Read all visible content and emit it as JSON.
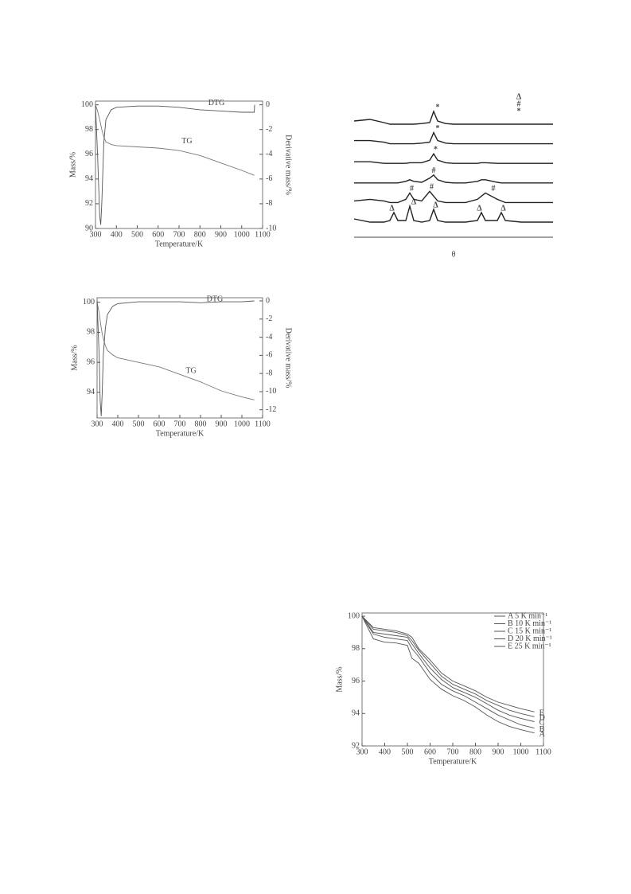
{
  "chart_data": [
    {
      "type": "line",
      "xlabel": "Temperature/K",
      "ylabel": "Mass/%",
      "y2label": "Derivative mass/%",
      "xlim": [
        300,
        1100
      ],
      "xticks": [
        300,
        400,
        500,
        600,
        700,
        800,
        900,
        1000,
        1100
      ],
      "ylim": [
        90,
        100.3
      ],
      "yticks": [
        90,
        92,
        94,
        96,
        98,
        100
      ],
      "y2lim": [
        -10,
        0.3
      ],
      "y2ticks": [
        0,
        -2,
        -4,
        -6,
        -8,
        -10
      ],
      "x": [
        300,
        310,
        320,
        325,
        330,
        340,
        350,
        375,
        400,
        500,
        600,
        700,
        800,
        900,
        1000,
        1060,
        1062
      ],
      "series": [
        {
          "color": "#777",
          "values": [
            100,
            99.5,
            98.8,
            98.4,
            98.0,
            97.4,
            97.0,
            96.8,
            96.7,
            96.6,
            96.5,
            96.3,
            95.9,
            95.3,
            94.7,
            94.3,
            null
          ]
        },
        {
          "color": "#555",
          "axis": "y2",
          "values": [
            0,
            -4,
            -9,
            -9.7,
            -8,
            -3,
            -1.2,
            -0.4,
            -0.2,
            -0.1,
            -0.1,
            -0.2,
            -0.4,
            -0.5,
            -0.6,
            -0.6,
            0
          ]
        }
      ],
      "annotations": [
        {
          "text": "DTG",
          "x": 879,
          "y2": 0
        },
        {
          "text": "TG",
          "x": 738,
          "y": 96.9
        }
      ]
    },
    {
      "type": "line",
      "xlabel": "Temperature/K",
      "ylabel": "Mass/%",
      "y2label": "Derivative mass/%",
      "xlim": [
        300,
        1100
      ],
      "xticks": [
        300,
        400,
        500,
        600,
        700,
        800,
        900,
        1000,
        1100
      ],
      "ylim": [
        92.3,
        100.3
      ],
      "yticks": [
        94,
        96,
        98,
        100
      ],
      "y2lim": [
        -12.9,
        0.35
      ],
      "y2ticks": [
        0,
        -2,
        -4,
        -6,
        -8,
        -10,
        -12
      ],
      "x": [
        300,
        310,
        315,
        320,
        325,
        330,
        340,
        350,
        375,
        400,
        500,
        600,
        700,
        800,
        900,
        1000,
        1060
      ],
      "series": [
        {
          "color": "#777",
          "values": [
            100,
            99.3,
            98.8,
            98.3,
            97.9,
            97.6,
            97.1,
            96.8,
            96.5,
            96.3,
            96.0,
            95.7,
            95.2,
            94.7,
            94.1,
            93.7,
            93.5
          ]
        },
        {
          "color": "#555",
          "axis": "y2",
          "values": [
            0,
            -6,
            -11,
            -12.7,
            -10,
            -6,
            -3,
            -1.5,
            -0.6,
            -0.3,
            -0.1,
            -0.1,
            -0.1,
            -0.2,
            -0.1,
            -0.1,
            0
          ]
        }
      ],
      "annotations": [
        {
          "text": "DTG",
          "x": 869,
          "y2": 0
        },
        {
          "text": "TG",
          "x": 754,
          "y": 95.3
        }
      ]
    },
    {
      "type": "line",
      "offset_series": true,
      "xlabel": "θ",
      "xlim": [
        0,
        100
      ],
      "legend_symbols": [
        "Δ",
        "#",
        "*"
      ],
      "x": [
        0,
        8,
        15,
        18,
        20,
        22,
        26,
        28,
        30,
        34,
        38,
        40,
        42,
        46,
        50,
        56,
        62,
        64,
        66,
        72,
        74,
        76,
        84,
        92,
        100
      ],
      "series": [
        {
          "color": "#222",
          "values": [
            2,
            1,
            1,
            1.5,
            4,
            1.5,
            1.5,
            6,
            1.5,
            1,
            1.5,
            5,
            1.5,
            1,
            1,
            1,
            1.5,
            4,
            1.5,
            1.5,
            4,
            1.5,
            1,
            1,
            1
          ],
          "markers": [
            {
              "text": "Δ",
              "x": 19
            },
            {
              "text": "Δ",
              "x": 30
            },
            {
              "text": "Δ",
              "x": 41
            },
            {
              "text": "Δ",
              "x": 63
            },
            {
              "text": "Δ",
              "x": 75
            }
          ]
        },
        {
          "color": "#222",
          "values": [
            1.5,
            2,
            1.5,
            1,
            1,
            1,
            2,
            4,
            2,
            1.5,
            4.5,
            3,
            1.5,
            1,
            1,
            1,
            2,
            3,
            4,
            2,
            1.5,
            1,
            1,
            1,
            1
          ],
          "markers": [
            {
              "text": "#",
              "x": 29
            },
            {
              "text": "#",
              "x": 39
            },
            {
              "text": "#",
              "x": 70
            }
          ]
        },
        {
          "color": "#222",
          "values": [
            1,
            1,
            1,
            1,
            1,
            1,
            1.5,
            2,
            1.5,
            1.2,
            2.5,
            3.5,
            2,
            1.2,
            1,
            1,
            1.5,
            2,
            2,
            1.2,
            1,
            1,
            1,
            1,
            1
          ],
          "markers": [
            {
              "text": "#",
              "x": 40
            }
          ]
        },
        {
          "color": "#222",
          "values": [
            1.5,
            1.5,
            1,
            1,
            1,
            1,
            1,
            1.2,
            1.2,
            1.2,
            2,
            4,
            2,
            1.2,
            1,
            1,
            1,
            1.2,
            1.2,
            1,
            1,
            1,
            1,
            1,
            1
          ],
          "markers": [
            {
              "text": "*",
              "x": 41
            }
          ]
        },
        {
          "color": "#222",
          "values": [
            2,
            2,
            1.5,
            1,
            1,
            1,
            1,
            1,
            1,
            1.2,
            1.5,
            4.5,
            2,
            1.2,
            1,
            1,
            1,
            1,
            1,
            1,
            1,
            1,
            1,
            1,
            1
          ],
          "markers": [
            {
              "text": "*",
              "x": 42
            }
          ]
        },
        {
          "color": "#222",
          "values": [
            2,
            2.5,
            1.5,
            1,
            1,
            1,
            1,
            1,
            1,
            1.2,
            1.5,
            5,
            2,
            1.2,
            1,
            1,
            1,
            1,
            1,
            1,
            1,
            1,
            1,
            1,
            1
          ],
          "markers": [
            {
              "text": "*",
              "x": 42
            }
          ]
        }
      ]
    },
    {
      "type": "line",
      "xlabel": "Temperature/K",
      "ylabel": "Mass/%",
      "xlim": [
        300,
        1100
      ],
      "xticks": [
        300,
        400,
        500,
        600,
        700,
        800,
        900,
        1000,
        1100
      ],
      "ylim": [
        92,
        100.2
      ],
      "yticks": [
        92,
        94,
        96,
        98,
        100
      ],
      "legend": "upper right",
      "x": [
        300,
        350,
        400,
        450,
        500,
        520,
        550,
        600,
        650,
        700,
        750,
        800,
        850,
        900,
        950,
        1000,
        1060
      ],
      "series": [
        {
          "name": "A  5 K min⁻¹",
          "label": "A",
          "color": "#555",
          "values": [
            100,
            98.6,
            98.4,
            98.35,
            98.2,
            97.4,
            97.1,
            96.1,
            95.5,
            95.1,
            94.8,
            94.4,
            93.9,
            93.5,
            93.2,
            93.0,
            92.8
          ]
        },
        {
          "name": "B  10 K min⁻¹",
          "label": "B",
          "color": "#555",
          "values": [
            100,
            98.9,
            98.7,
            98.6,
            98.5,
            98.0,
            97.5,
            96.5,
            95.8,
            95.4,
            95.1,
            94.7,
            94.3,
            93.9,
            93.6,
            93.3,
            93.1
          ]
        },
        {
          "name": "C  15 K min⁻¹",
          "label": "C",
          "color": "#555",
          "values": [
            100,
            99.0,
            98.9,
            98.8,
            98.7,
            98.3,
            97.7,
            96.8,
            96.1,
            95.6,
            95.3,
            95.0,
            94.6,
            94.2,
            93.9,
            93.7,
            93.5
          ]
        },
        {
          "name": "D  20 K min⁻¹",
          "label": "D",
          "color": "#555",
          "values": [
            100,
            99.2,
            99.1,
            99.0,
            98.8,
            98.5,
            97.9,
            97.1,
            96.3,
            95.8,
            95.5,
            95.2,
            94.8,
            94.5,
            94.2,
            94.0,
            93.8
          ]
        },
        {
          "name": "E  25 K min⁻¹",
          "label": "E",
          "color": "#555",
          "values": [
            100,
            99.3,
            99.2,
            99.1,
            98.9,
            98.7,
            98.0,
            97.3,
            96.5,
            96.0,
            95.7,
            95.4,
            95.0,
            94.7,
            94.5,
            94.3,
            94.1
          ]
        }
      ]
    }
  ]
}
